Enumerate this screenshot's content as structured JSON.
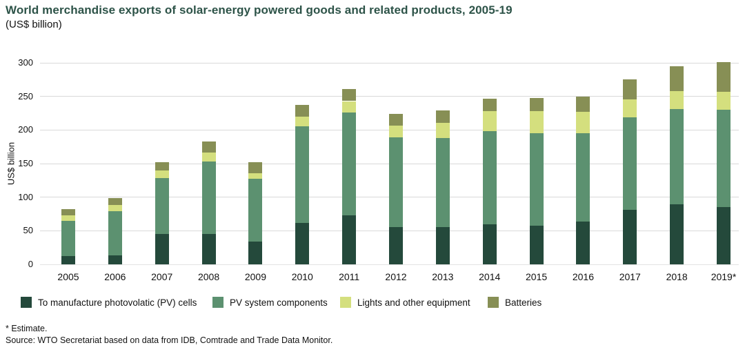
{
  "header": {
    "title": "World merchandise exports of solar-energy powered goods and related products, 2005-19",
    "subtitle": "(US$ billion)"
  },
  "chart_data": {
    "type": "bar",
    "stacked": true,
    "title": "World merchandise exports of solar-energy powered goods and related products, 2005-19 (US$ billion)",
    "xlabel": "",
    "ylabel": "US$ billion",
    "ylim": [
      0,
      300
    ],
    "yticks": [
      0,
      50,
      100,
      150,
      200,
      250,
      300
    ],
    "grid": "horizontal",
    "legend_position": "bottom",
    "categories": [
      "2005",
      "2006",
      "2007",
      "2008",
      "2009",
      "2010",
      "2011",
      "2012",
      "2013",
      "2014",
      "2015",
      "2016",
      "2017",
      "2018",
      "2019*"
    ],
    "series": [
      {
        "name": "To manufacture photovolatic (PV) cells",
        "color": "#24493b",
        "values": [
          12,
          13,
          45,
          45,
          34,
          62,
          73,
          56,
          55,
          60,
          58,
          64,
          81,
          89,
          85
        ]
      },
      {
        "name": "PV system components",
        "color": "#5c9170",
        "values": [
          53,
          66,
          83,
          108,
          93,
          144,
          153,
          133,
          133,
          138,
          137,
          131,
          138,
          142,
          145
        ]
      },
      {
        "name": "Lights and other equipment",
        "color": "#d4df7e",
        "values": [
          8,
          9,
          12,
          13,
          9,
          14,
          17,
          18,
          23,
          30,
          33,
          32,
          27,
          27,
          27
        ]
      },
      {
        "name": "Batteries",
        "color": "#878f55",
        "values": [
          9,
          11,
          12,
          17,
          16,
          17,
          18,
          17,
          18,
          19,
          20,
          23,
          29,
          37,
          44
        ]
      }
    ],
    "totals": [
      82,
      99,
      152,
      183,
      152,
      237,
      261,
      224,
      229,
      247,
      248,
      250,
      275,
      295,
      301
    ]
  },
  "footer": {
    "estimate_note": "* Estimate.",
    "source": "Source: WTO Secretariat based on data from IDB, Comtrade and Trade Data Monitor."
  }
}
